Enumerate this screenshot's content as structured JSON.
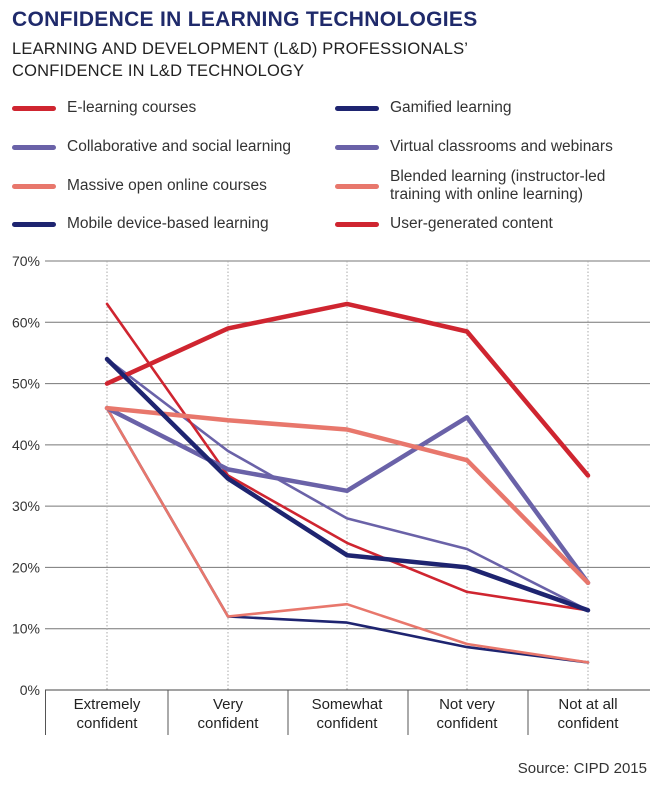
{
  "title": "CONFIDENCE IN LEARNING TECHNOLOGIES",
  "subtitle": "LEARNING AND DEVELOPMENT (L&D) PROFESSIONALS’ CONFIDENCE IN L&D TECHNOLOGY",
  "source": "Source: CIPD 2015",
  "chart_data": {
    "type": "line",
    "title": "CONFIDENCE IN LEARNING TECHNOLOGIES",
    "xlabel": "",
    "ylabel": "",
    "categories": [
      [
        "Extremely",
        "confident"
      ],
      [
        "Very",
        "confident"
      ],
      [
        "Somewhat",
        "confident"
      ],
      [
        "Not very",
        "confident"
      ],
      [
        "Not at all",
        "confident"
      ]
    ],
    "ylim": [
      0,
      70
    ],
    "yticks": [
      "0%",
      "10%",
      "20%",
      "30%",
      "40%",
      "50%",
      "60%",
      "70%"
    ],
    "grid": true,
    "legend_position": "top",
    "series": [
      {
        "name": "E-learning courses",
        "color": "#cf2530",
        "weight": "thick",
        "values": [
          50,
          59,
          63,
          58.5,
          35
        ]
      },
      {
        "name": "Gamified learning",
        "color": "#1e2470",
        "weight": "thin",
        "values": [
          46,
          12,
          11,
          7,
          4.5
        ]
      },
      {
        "name": "Collaborative and social learning",
        "color": "#6a62a8",
        "weight": "thin",
        "values": [
          54,
          39,
          28,
          23,
          13
        ]
      },
      {
        "name": "Virtual classrooms and webinars",
        "color": "#6a62a8",
        "weight": "thick",
        "values": [
          46,
          36,
          32.5,
          44.5,
          17.5
        ]
      },
      {
        "name": "Massive open online courses",
        "color": "#e8776c",
        "weight": "thin",
        "values": [
          46,
          12,
          14,
          7.5,
          4.5
        ]
      },
      {
        "name": "Blended learning (instructor-led training with online learning)",
        "color": "#e8776c",
        "weight": "thick",
        "values": [
          46,
          44,
          42.5,
          37.5,
          17.5
        ]
      },
      {
        "name": "Mobile device-based learning",
        "color": "#1e2470",
        "weight": "thick",
        "values": [
          54,
          34.5,
          22,
          20,
          13
        ]
      },
      {
        "name": "User-generated content",
        "color": "#cf2530",
        "weight": "thin",
        "values": [
          63,
          35,
          24,
          16,
          13
        ]
      }
    ]
  }
}
